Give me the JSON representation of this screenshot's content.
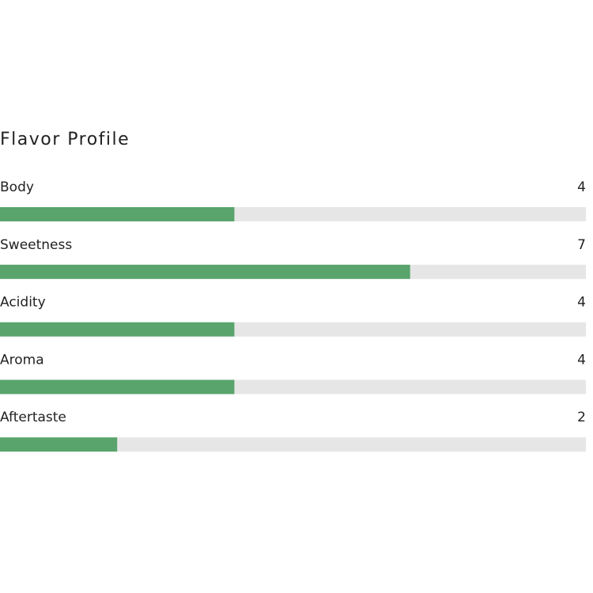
{
  "chart_data": {
    "type": "bar",
    "orientation": "horizontal",
    "title": "Flavor Profile",
    "categories": [
      "Body",
      "Sweetness",
      "Acidity",
      "Aroma",
      "Aftertaste"
    ],
    "values": [
      4,
      7,
      4,
      4,
      2
    ],
    "xlim": [
      0,
      10
    ],
    "color": "#58a46c",
    "track_color": "#e6e6e6"
  }
}
